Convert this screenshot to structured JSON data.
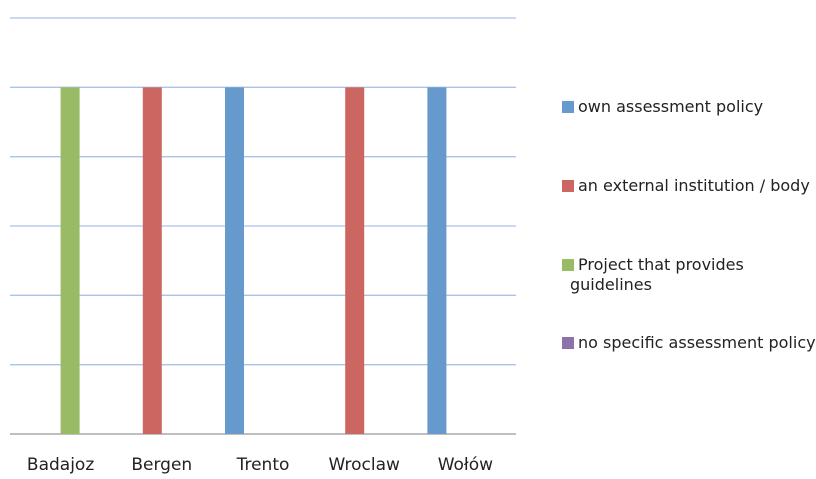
{
  "chart_data": {
    "type": "bar",
    "categories": [
      "Badajoz",
      "Bergen",
      "Trento",
      "Wroclaw",
      "Wołów"
    ],
    "series": [
      {
        "name": "own assessment policy",
        "color": "#6699cc",
        "values": [
          0,
          0,
          1,
          0,
          1
        ]
      },
      {
        "name": "an external institution / body",
        "color": "#cc6660",
        "values": [
          0,
          1,
          0,
          1,
          0
        ]
      },
      {
        "name": "Project that provides guidelines",
        "color": "#99bb66",
        "values": [
          1,
          0,
          0,
          0,
          0
        ]
      },
      {
        "name": "no specific assessment policy",
        "color": "#8e72aa",
        "values": [
          0,
          0,
          0,
          0,
          0
        ]
      }
    ],
    "ylim": [
      0,
      1.2
    ],
    "yticks": [
      0,
      0.2,
      0.4,
      0.6,
      0.8,
      1,
      1.2
    ],
    "grid": true,
    "legend": "right"
  }
}
